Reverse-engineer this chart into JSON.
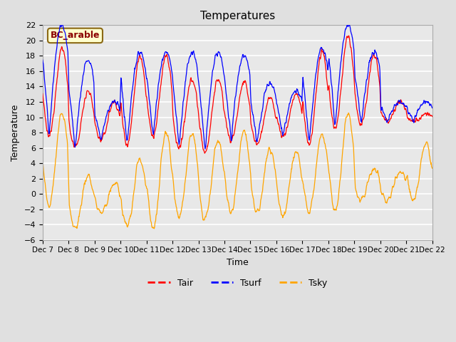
{
  "title": "Temperatures",
  "xlabel": "Time",
  "ylabel": "Temperature",
  "ylim": [
    -6,
    22
  ],
  "yticks": [
    -6,
    -4,
    -2,
    0,
    2,
    4,
    6,
    8,
    10,
    12,
    14,
    16,
    18,
    20,
    22
  ],
  "annotation": "BC_arable",
  "annotation_color": "#8B0000",
  "annotation_bg": "#FFFFCC",
  "annotation_edge": "#8B6914",
  "line_tair_color": "red",
  "line_tsurf_color": "blue",
  "line_tsky_color": "orange",
  "legend_labels": [
    "Tair",
    "Tsurf",
    "Tsky"
  ],
  "bg_color": "#E8E8E8",
  "fig_color": "#E0E0E0",
  "grid_color": "white",
  "xtick_labels": [
    "Dec 7",
    "Dec 8",
    "Dec 9",
    "Dec 10",
    "Dec 11",
    "Dec 12",
    "Dec 13",
    "Dec 14",
    "Dec 15",
    "Dec 16",
    "Dec 17",
    "Dec 18",
    "Dec 19",
    "Dec 20",
    "Dec 21",
    "Dec 22"
  ],
  "tair_daily_min": [
    7.5,
    6.0,
    7.0,
    6.5,
    7.5,
    6.0,
    5.5,
    7.0,
    6.5,
    7.5,
    6.5,
    8.5,
    9.0,
    9.5,
    9.5
  ],
  "tair_daily_max": [
    19.0,
    13.5,
    12.0,
    18.0,
    18.0,
    15.0,
    15.0,
    14.5,
    12.5,
    13.0,
    18.5,
    20.5,
    18.0,
    12.0,
    10.5
  ],
  "tsurf_extra_peak": [
    3.0,
    4.0,
    0.0,
    0.5,
    0.5,
    3.5,
    3.5,
    3.5,
    2.0,
    0.5,
    0.5,
    1.5,
    0.5,
    0.0,
    1.5
  ],
  "tsky_daily_min": [
    -1.5,
    -4.5,
    -2.5,
    -4.5,
    -4.5,
    -3.0,
    -3.5,
    -2.5,
    -2.5,
    -3.0,
    -2.5,
    -2.5,
    -1.0,
    -1.0,
    -1.0
  ],
  "tsky_daily_max": [
    10.5,
    2.5,
    1.5,
    4.5,
    8.0,
    8.0,
    7.0,
    8.0,
    6.0,
    5.5,
    8.0,
    10.5,
    3.5,
    3.0,
    6.5
  ]
}
